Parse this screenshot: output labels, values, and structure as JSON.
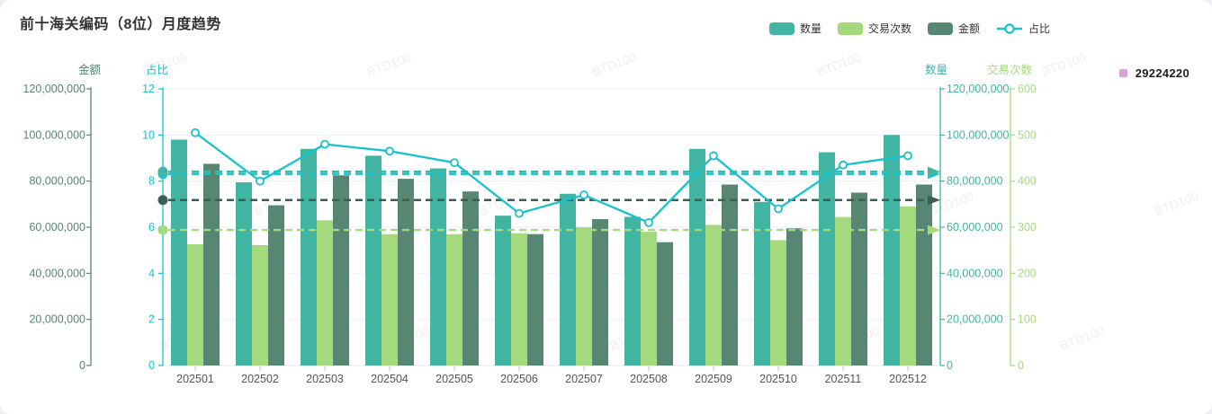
{
  "title": "前十海关编码（8位）月度趋势",
  "watermark": "BTD100",
  "side_legend": {
    "label": "29224220",
    "color": "#d9a3da"
  },
  "legend": {
    "items": [
      {
        "id": "quantity",
        "label": "数量",
        "type": "bar",
        "color": "#41b4a2"
      },
      {
        "id": "transactions",
        "label": "交易次数",
        "type": "bar",
        "color": "#a5d97e"
      },
      {
        "id": "amount",
        "label": "金额",
        "type": "bar",
        "color": "#578672"
      },
      {
        "id": "ratio",
        "label": "占比",
        "type": "line",
        "color": "#17c2ce"
      }
    ]
  },
  "chart_data": {
    "type": "combo-bar-line",
    "title": "前十海关编码（8位）月度趋势",
    "categories": [
      "202501",
      "202502",
      "202503",
      "202504",
      "202505",
      "202506",
      "202507",
      "202508",
      "202509",
      "202510",
      "202511",
      "202512"
    ],
    "series": [
      {
        "id": "quantity",
        "name": "数量",
        "type": "bar",
        "yaxis": "quantity",
        "color": "#41b4a2",
        "values": [
          98000000,
          79500000,
          94000000,
          91000000,
          85500000,
          65000000,
          74500000,
          64500000,
          94000000,
          71000000,
          92500000,
          100000000
        ],
        "average": 84125000
      },
      {
        "id": "transactions",
        "name": "交易次数",
        "type": "bar",
        "yaxis": "count",
        "color": "#a5d97e",
        "values": [
          263,
          261,
          315,
          285,
          285,
          287,
          300,
          290,
          305,
          272,
          322,
          345
        ],
        "average": 294
      },
      {
        "id": "amount",
        "name": "金额",
        "type": "bar",
        "yaxis": "amount",
        "color": "#578672",
        "markline_color": "#3c5f53",
        "values": [
          87500000,
          69500000,
          82500000,
          81000000,
          75500000,
          57000000,
          63500000,
          53500000,
          78500000,
          59500000,
          75000000,
          78500000
        ],
        "average": 71790000
      },
      {
        "id": "ratio",
        "name": "占比",
        "type": "line",
        "yaxis": "ratio",
        "color": "#17c2ce",
        "values": [
          10.1,
          8.0,
          9.6,
          9.3,
          8.8,
          6.6,
          7.4,
          6.2,
          9.1,
          6.8,
          8.7,
          9.1
        ],
        "average": 8.31
      }
    ],
    "axes": {
      "amount": {
        "name": "金额",
        "position": "outer-left",
        "max": 120000000,
        "color": "#578672",
        "tick_labels": [
          "0",
          "20,000,000",
          "40,000,000",
          "60,000,000",
          "80,000,000",
          "100,000,000",
          "120,000,000"
        ]
      },
      "ratio": {
        "name": "占比",
        "position": "inner-left",
        "max": 12,
        "color": "#17c2ce",
        "tick_labels": [
          "0",
          "2",
          "4",
          "6",
          "8",
          "10",
          "12"
        ]
      },
      "quantity": {
        "name": "数量",
        "position": "inner-right",
        "max": 120000000,
        "color": "#41b4a2",
        "tick_labels": [
          "0",
          "20,000,000",
          "40,000,000",
          "60,000,000",
          "80,000,000",
          "100,000,000",
          "120,000,000"
        ]
      },
      "count": {
        "name": "交易次数",
        "position": "outer-right",
        "max": 600,
        "color": "#a5d97e",
        "tick_labels": [
          "0",
          "100",
          "200",
          "300",
          "400",
          "500",
          "600"
        ]
      }
    },
    "grid": true,
    "legend_position": "top-right",
    "xlabel": "",
    "ylabel": ""
  }
}
